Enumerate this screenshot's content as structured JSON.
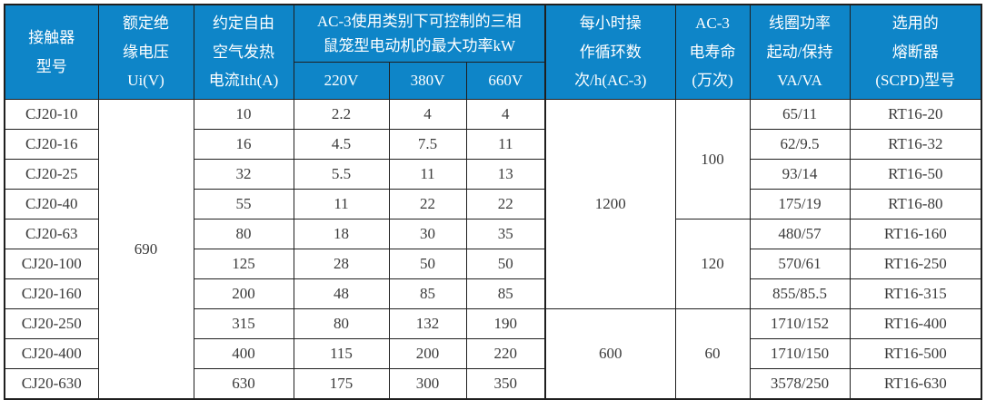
{
  "colors": {
    "header_bg": "#0e85c8",
    "header_text": "#ffffff",
    "body_text": "#3a3a3a",
    "border": "#1f1f1f"
  },
  "table": {
    "header": {
      "model": "接触器\n型号",
      "ui": "额定绝\n缘电压\nUi(V)",
      "ith": "约定自由\n空气发热\n电流Ith(A)",
      "power_group": "AC-3使用类别下可控制的三相\n鼠笼型电动机的最大功率kW",
      "v220": "220V",
      "v380": "380V",
      "v660": "660V",
      "cycles": "每小时操\n作循环数\n次/h(AC-3)",
      "life": "AC-3\n电寿命\n(万次)",
      "coil": "线圈功率\n起动/保持\nVA/VA",
      "fuse": "选用的\n熔断器\n(SCPD)型号"
    },
    "merged": {
      "ui_all": "690",
      "cycles_top": "1200",
      "cycles_bottom": "600",
      "life_top": "100",
      "life_mid": "120",
      "life_bottom": "60"
    },
    "rows": [
      {
        "model": "CJ20-10",
        "ith": "10",
        "p220": "2.2",
        "p380": "4",
        "p660": "4",
        "coil": "65/11",
        "fuse": "RT16-20"
      },
      {
        "model": "CJ20-16",
        "ith": "16",
        "p220": "4.5",
        "p380": "7.5",
        "p660": "11",
        "coil": "62/9.5",
        "fuse": "RT16-32"
      },
      {
        "model": "CJ20-25",
        "ith": "32",
        "p220": "5.5",
        "p380": "11",
        "p660": "13",
        "coil": "93/14",
        "fuse": "RT16-50"
      },
      {
        "model": "CJ20-40",
        "ith": "55",
        "p220": "11",
        "p380": "22",
        "p660": "22",
        "coil": "175/19",
        "fuse": "RT16-80"
      },
      {
        "model": "CJ20-63",
        "ith": "80",
        "p220": "18",
        "p380": "30",
        "p660": "35",
        "coil": "480/57",
        "fuse": "RT16-160"
      },
      {
        "model": "CJ20-100",
        "ith": "125",
        "p220": "28",
        "p380": "50",
        "p660": "50",
        "coil": "570/61",
        "fuse": "RT16-250"
      },
      {
        "model": "CJ20-160",
        "ith": "200",
        "p220": "48",
        "p380": "85",
        "p660": "85",
        "coil": "855/85.5",
        "fuse": "RT16-315"
      },
      {
        "model": "CJ20-250",
        "ith": "315",
        "p220": "80",
        "p380": "132",
        "p660": "190",
        "coil": "1710/152",
        "fuse": "RT16-400"
      },
      {
        "model": "CJ20-400",
        "ith": "400",
        "p220": "115",
        "p380": "200",
        "p660": "220",
        "coil": "1710/150",
        "fuse": "RT16-500"
      },
      {
        "model": "CJ20-630",
        "ith": "630",
        "p220": "175",
        "p380": "300",
        "p660": "350",
        "coil": "3578/250",
        "fuse": "RT16-630"
      }
    ]
  }
}
